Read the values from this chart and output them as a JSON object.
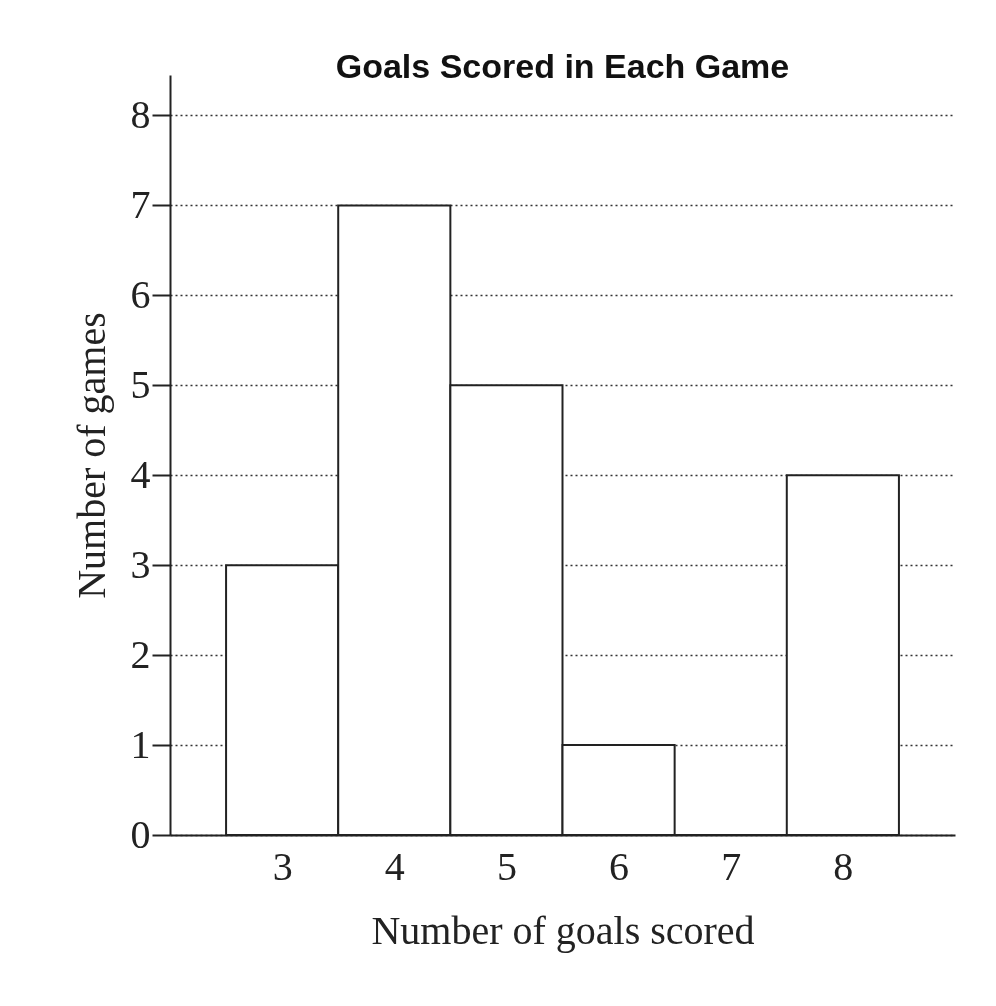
{
  "chart_data": {
    "type": "histogram",
    "title": "Goals Scored in Each Game",
    "xlabel": "Number of goals scored",
    "ylabel": "Number of games",
    "bins": [
      2.5,
      3.5,
      4.5,
      5.5,
      6.5,
      7.5,
      8.5
    ],
    "values": [
      3,
      7,
      5,
      1,
      0,
      4
    ],
    "color": "#ffffff",
    "xlim": [
      2,
      9
    ],
    "xticks": [
      3,
      4,
      5,
      6,
      7,
      8
    ],
    "ylim": [
      0,
      8.45
    ],
    "yticks": [
      0,
      1,
      2,
      3,
      4,
      5,
      6,
      7,
      8
    ],
    "grid": "y"
  }
}
